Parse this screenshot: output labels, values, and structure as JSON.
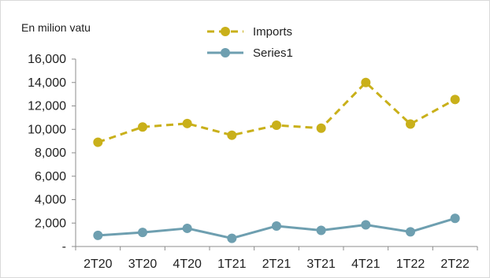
{
  "chart_data": {
    "type": "line",
    "unit_label": "En milion vatu",
    "categories": [
      "2T20",
      "3T20",
      "4T20",
      "1T21",
      "2T21",
      "3T21",
      "4T21",
      "1T22",
      "2T22"
    ],
    "series": [
      {
        "name": "Imports",
        "values": [
          8900,
          10200,
          10500,
          9500,
          10350,
          10100,
          14000,
          10450,
          12550
        ],
        "color": "#c9b01a",
        "line_style": "dashed",
        "marker": "circle"
      },
      {
        "name": "Series1",
        "values": [
          950,
          1200,
          1550,
          700,
          1750,
          1380,
          1850,
          1250,
          2400
        ],
        "color": "#6e9fb0",
        "line_style": "solid",
        "marker": "circle"
      }
    ],
    "yticks": [
      {
        "value": 0,
        "label": "-"
      },
      {
        "value": 2000,
        "label": "2,000"
      },
      {
        "value": 4000,
        "label": "4,000"
      },
      {
        "value": 6000,
        "label": "6,000"
      },
      {
        "value": 8000,
        "label": "8,000"
      },
      {
        "value": 10000,
        "label": "10,000"
      },
      {
        "value": 12000,
        "label": "12,000"
      },
      {
        "value": 14000,
        "label": "14,000"
      },
      {
        "value": 16000,
        "label": "16,000"
      }
    ],
    "ylim": [
      0,
      16000
    ],
    "grid": false,
    "legend": "top-center"
  }
}
